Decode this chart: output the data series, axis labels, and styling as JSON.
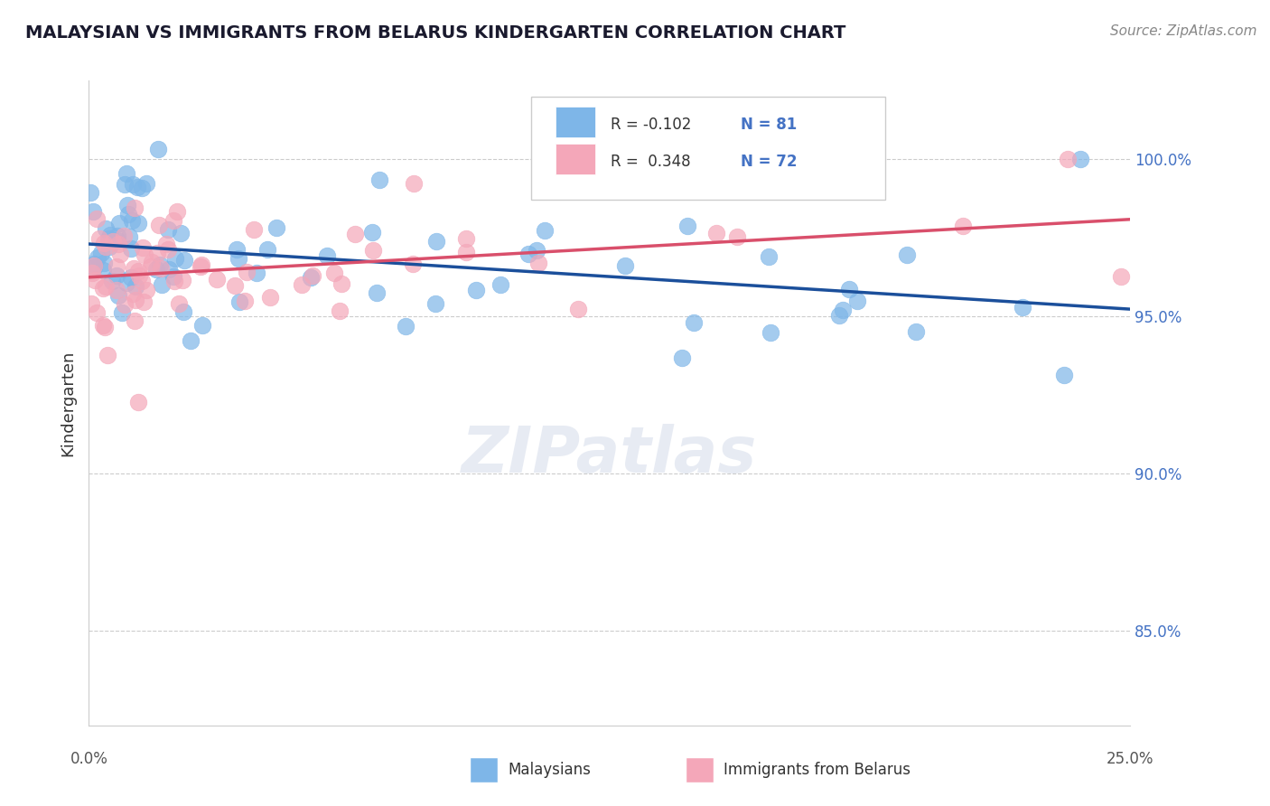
{
  "title": "MALAYSIAN VS IMMIGRANTS FROM BELARUS KINDERGARTEN CORRELATION CHART",
  "source": "Source: ZipAtlas.com",
  "ylabel": "Kindergarten",
  "xlim": [
    0.0,
    25.0
  ],
  "ylim": [
    82.0,
    102.5
  ],
  "legend_blue_r": "-0.102",
  "legend_blue_n": "81",
  "legend_pink_r": "0.348",
  "legend_pink_n": "72",
  "blue_color": "#7EB6E8",
  "pink_color": "#F4A7B9",
  "blue_line_color": "#1B4F9B",
  "pink_line_color": "#D94F6B",
  "watermark": "ZIPatlas",
  "ytick_positions": [
    85.0,
    90.0,
    95.0,
    100.0
  ],
  "ytick_labels": [
    "85.0%",
    "90.0%",
    "95.0%",
    "100.0%"
  ]
}
